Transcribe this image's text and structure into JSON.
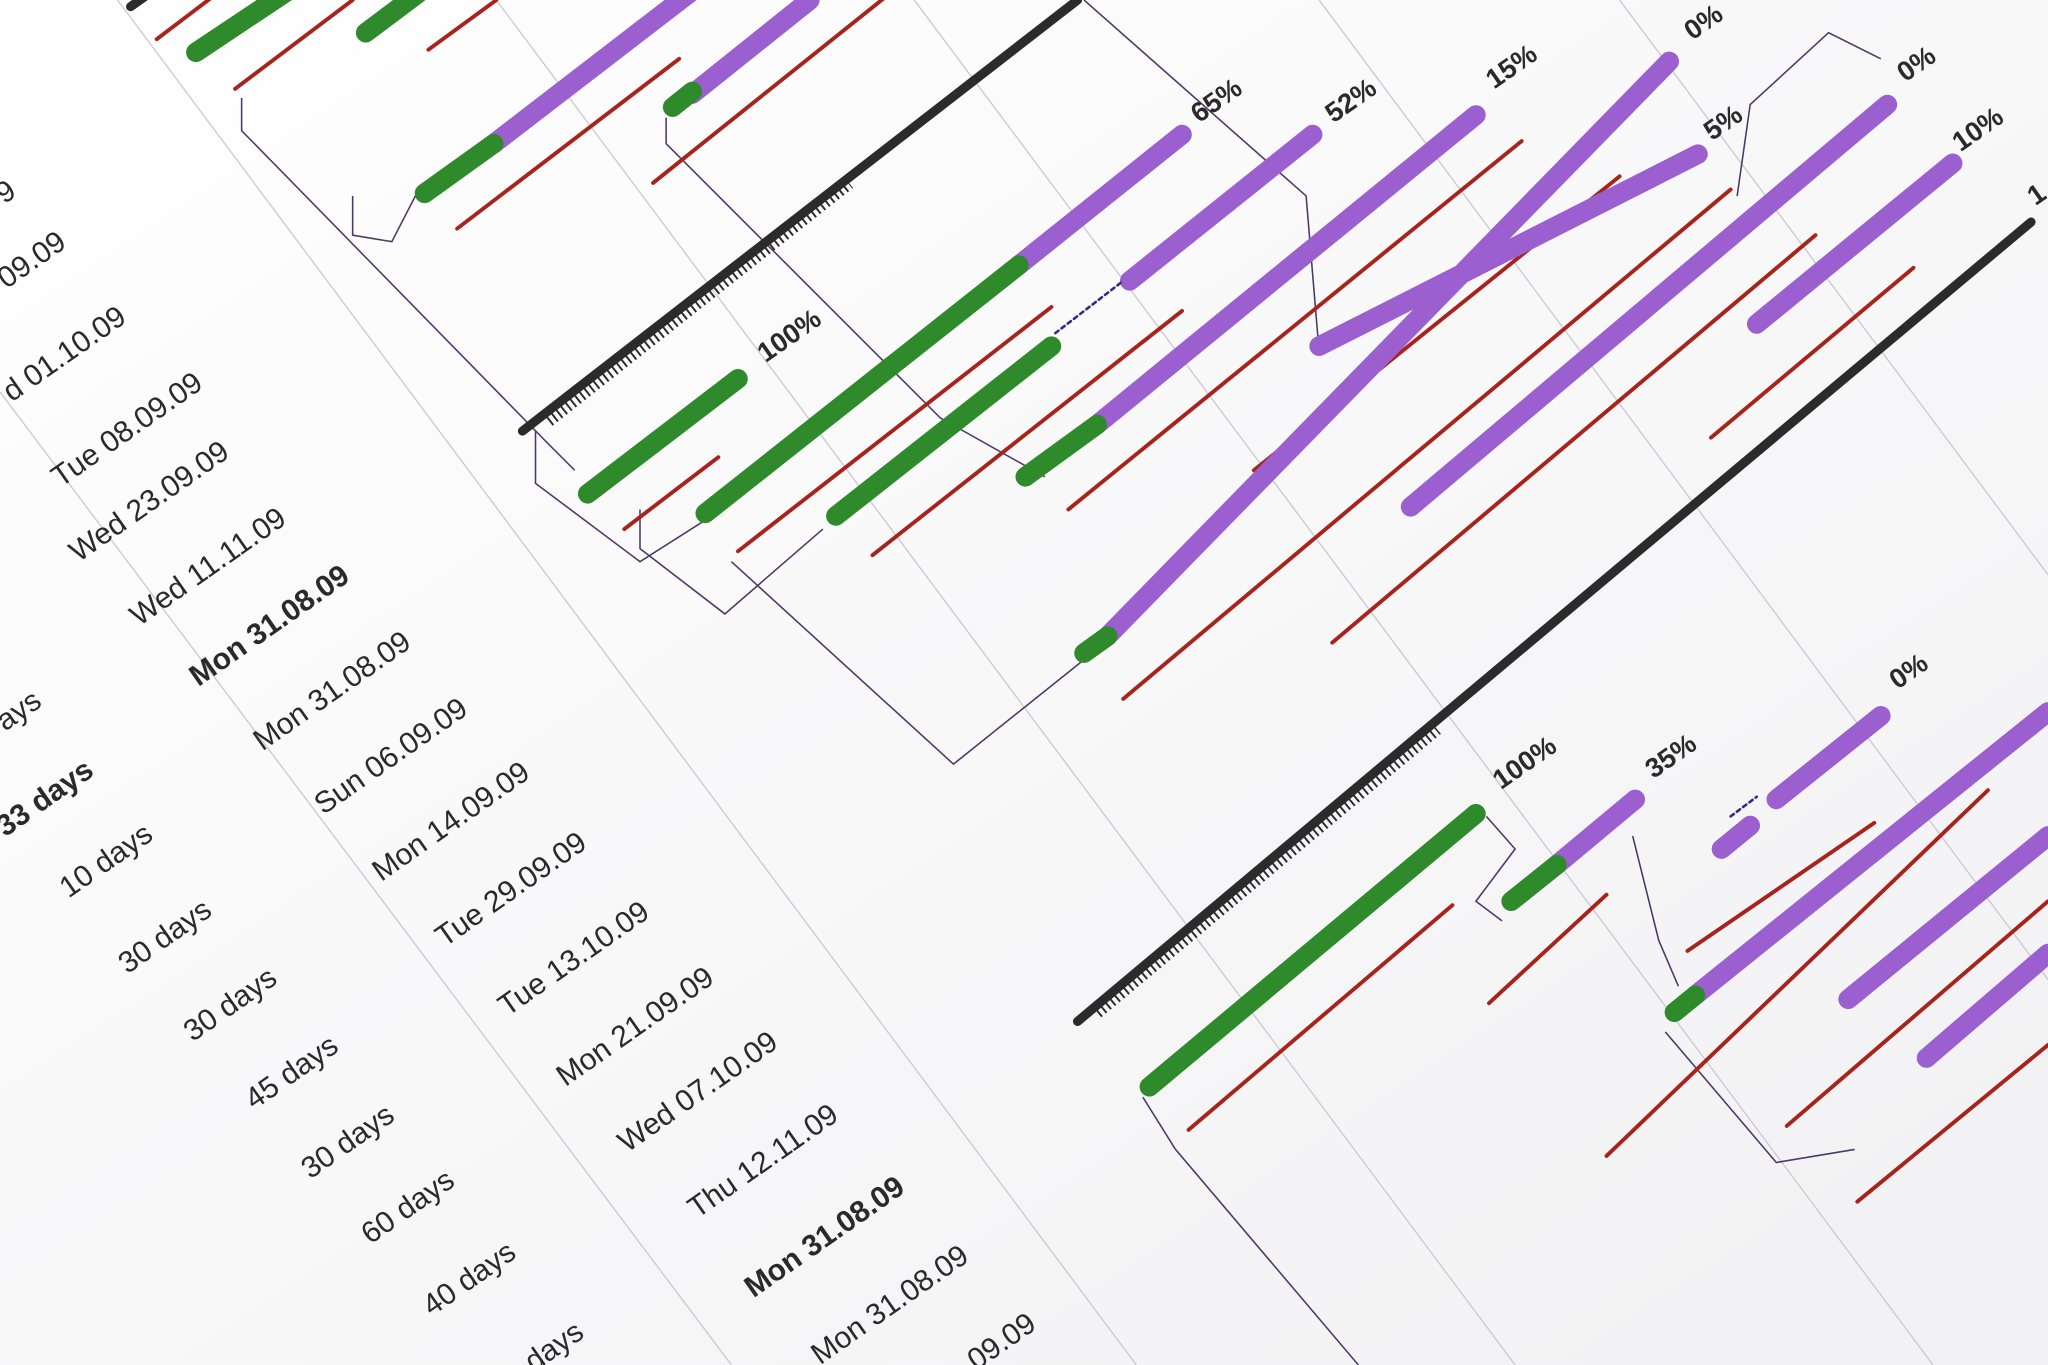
{
  "table": {
    "durations": [
      "ays",
      "33 days",
      "10 days",
      "30 days",
      "30 days",
      "45 days",
      "30 days",
      "60 days",
      "40 days",
      "days"
    ],
    "start_dates": [
      "9",
      "09.09",
      "d 01.10.09",
      "Tue 08.09.09",
      "Wed 23.09.09",
      "Wed 11.11.09",
      "Mon 31.08.09",
      "Mon 31.08.09",
      "Sun 06.09.09",
      "Mon 14.09.09",
      "Tue 29.09.09",
      "Tue 13.10.09",
      "Mon 21.09.09",
      "Wed 07.10.09",
      "Thu 12.11.09",
      "Mon 31.08.09",
      "Mon 31.08.09",
      ".09.09"
    ]
  },
  "gantt": {
    "labels": [
      "65%",
      "52%",
      "15%",
      "0%",
      "0%",
      "5%",
      "10%",
      "100%",
      "100%",
      "35%",
      "0%",
      "1"
    ]
  }
}
